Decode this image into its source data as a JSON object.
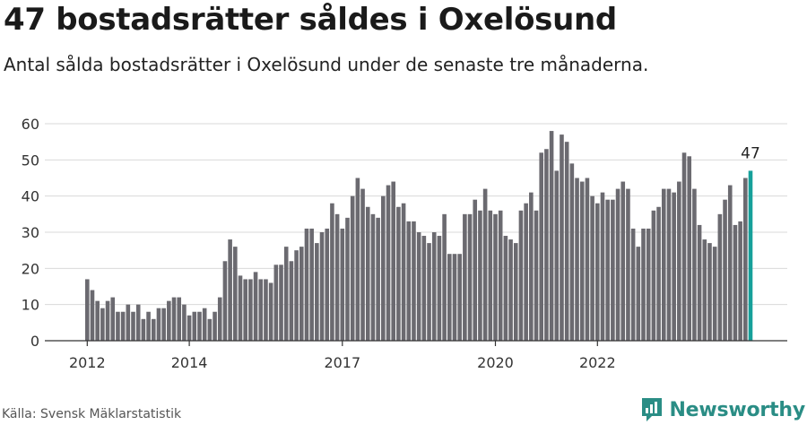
{
  "title": "47 bostadsrätter såldes i Oxelösund",
  "subtitle": "Antal sålda bostadsrätter i Oxelösund under de senaste tre månaderna.",
  "source": "Källa: Svensk Mäklarstatistik",
  "brand": "Newsworthy",
  "colors": {
    "bar": "#6b6a70",
    "highlight": "#16a09a",
    "grid": "#d9d9d9",
    "axis": "#333333",
    "brand": "#2a8d85"
  },
  "chart_data": {
    "type": "bar",
    "xlabel": "",
    "ylabel": "",
    "ylim": [
      0,
      60
    ],
    "yticks": [
      0,
      10,
      20,
      30,
      40,
      50,
      60
    ],
    "xticks": [
      {
        "label": "2012",
        "index": 0
      },
      {
        "label": "2014",
        "index": 20
      },
      {
        "label": "2017",
        "index": 50
      },
      {
        "label": "2020",
        "index": 80
      },
      {
        "label": "2022",
        "index": 100
      }
    ],
    "grid": true,
    "highlight_label": "47",
    "values": [
      17,
      14,
      11,
      9,
      11,
      12,
      8,
      8,
      10,
      8,
      10,
      6,
      8,
      6,
      9,
      9,
      11,
      12,
      12,
      10,
      7,
      8,
      8,
      9,
      6,
      8,
      12,
      22,
      28,
      26,
      18,
      17,
      17,
      19,
      17,
      17,
      16,
      21,
      21,
      26,
      22,
      25,
      26,
      31,
      31,
      27,
      30,
      31,
      38,
      35,
      31,
      34,
      40,
      45,
      42,
      37,
      35,
      34,
      40,
      43,
      44,
      37,
      38,
      33,
      33,
      30,
      29,
      27,
      30,
      29,
      35,
      24,
      24,
      24,
      35,
      35,
      39,
      36,
      42,
      36,
      35,
      36,
      29,
      28,
      27,
      36,
      38,
      41,
      36,
      52,
      53,
      58,
      47,
      57,
      55,
      49,
      45,
      44,
      45,
      40,
      38,
      41,
      39,
      39,
      42,
      44,
      42,
      31,
      26,
      31,
      31,
      36,
      37,
      42,
      42,
      41,
      44,
      52,
      51,
      42,
      32,
      28,
      27,
      26,
      35,
      39,
      43,
      32,
      33,
      45,
      47
    ]
  }
}
